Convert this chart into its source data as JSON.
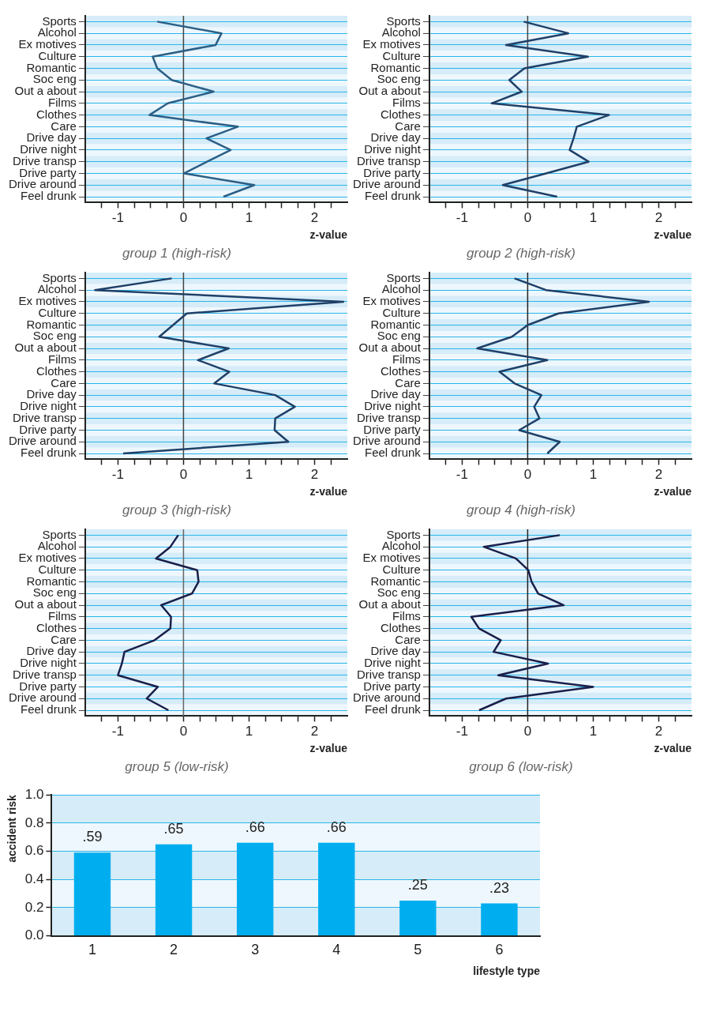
{
  "chart_data": [
    {
      "type": "line",
      "orientation": "horizontal",
      "title": "group 1 (high-risk)",
      "xlabel": "z-value",
      "categories": [
        "Sports",
        "Alcohol",
        "Ex motives",
        "Culture",
        "Romantic",
        "Soc eng",
        "Out a about",
        "Films",
        "Clothes",
        "Care",
        "Drive day",
        "Drive night",
        "Drive transp",
        "Drive party",
        "Drive around",
        "Feel drunk"
      ],
      "series": [
        {
          "color": "#2b5f86",
          "values": [
            -0.4,
            0.58,
            0.49,
            -0.47,
            -0.4,
            -0.18,
            0.46,
            -0.24,
            -0.52,
            0.83,
            0.35,
            0.72,
            0.36,
            0.01,
            1.08,
            0.61
          ]
        }
      ],
      "xlim": [
        -1.5,
        2.5
      ],
      "xticks": [
        {
          "value": -1.25,
          "label": null
        },
        -1,
        {
          "value": -0.75,
          "label": null
        },
        {
          "value": -0.5,
          "label": null
        },
        {
          "value": -0.25,
          "label": null
        },
        0,
        {
          "value": 0.25,
          "label": null
        },
        {
          "value": 0.5,
          "label": null
        },
        {
          "value": 0.75,
          "label": null
        },
        1,
        {
          "value": 1.25,
          "label": null
        },
        {
          "value": 1.5,
          "label": null
        },
        {
          "value": 1.75,
          "label": null
        },
        2,
        {
          "value": 2.25,
          "label": null
        }
      ],
      "ref_lines": [
        {
          "axis": "x",
          "value": 0,
          "color": "#444444"
        }
      ],
      "grid": "y",
      "marker": "none"
    },
    {
      "type": "line",
      "orientation": "horizontal",
      "title": "group 2 (high-risk)",
      "xlabel": "z-value",
      "categories": [
        "Sports",
        "Alcohol",
        "Ex motives",
        "Culture",
        "Romantic",
        "Soc eng",
        "Out a about",
        "Films",
        "Clothes",
        "Care",
        "Drive day",
        "Drive night",
        "Drive transp",
        "Drive party",
        "Drive around",
        "Feel drunk"
      ],
      "series": [
        {
          "color": "#1f4068",
          "values": [
            -0.06,
            0.62,
            -0.33,
            0.92,
            -0.05,
            -0.28,
            -0.09,
            -0.55,
            1.24,
            0.75,
            0.7,
            0.64,
            0.93,
            0.28,
            -0.38,
            0.45
          ]
        }
      ],
      "xlim": [
        -1.5,
        2.5
      ],
      "xticks": [
        {
          "value": -1.25,
          "label": null
        },
        -1,
        {
          "value": -0.75,
          "label": null
        },
        {
          "value": -0.5,
          "label": null
        },
        {
          "value": -0.25,
          "label": null
        },
        0,
        {
          "value": 0.25,
          "label": null
        },
        {
          "value": 0.5,
          "label": null
        },
        {
          "value": 0.75,
          "label": null
        },
        1,
        {
          "value": 1.25,
          "label": null
        },
        {
          "value": 1.5,
          "label": null
        },
        {
          "value": 1.75,
          "label": null
        },
        2,
        {
          "value": 2.25,
          "label": null
        }
      ],
      "ref_lines": [
        {
          "axis": "x",
          "value": 0,
          "color": "#444444"
        }
      ],
      "grid": "y",
      "marker": "none"
    },
    {
      "type": "line",
      "orientation": "horizontal",
      "title": "group 3 (high-risk)",
      "xlabel": "z-value",
      "categories": [
        "Sports",
        "Alcohol",
        "Ex motives",
        "Culture",
        "Romantic",
        "Soc eng",
        "Out a about",
        "Films",
        "Clothes",
        "Care",
        "Drive day",
        "Drive night",
        "Drive transp",
        "Drive party",
        "Drive around",
        "Feel drunk"
      ],
      "series": [
        {
          "color": "#1f4068",
          "values": [
            -0.18,
            -1.35,
            2.44,
            0.05,
            -0.16,
            -0.37,
            0.69,
            0.22,
            0.7,
            0.47,
            1.4,
            1.7,
            1.4,
            1.39,
            1.6,
            -0.92
          ]
        }
      ],
      "xlim": [
        -1.5,
        2.5
      ],
      "xticks": [
        {
          "value": -1.25,
          "label": null
        },
        -1,
        {
          "value": -0.75,
          "label": null
        },
        {
          "value": -0.5,
          "label": null
        },
        {
          "value": -0.25,
          "label": null
        },
        0,
        {
          "value": 0.25,
          "label": null
        },
        {
          "value": 0.5,
          "label": null
        },
        {
          "value": 0.75,
          "label": null
        },
        1,
        {
          "value": 1.25,
          "label": null
        },
        {
          "value": 1.5,
          "label": null
        },
        {
          "value": 1.75,
          "label": null
        },
        2,
        {
          "value": 2.25,
          "label": null
        }
      ],
      "ref_lines": [
        {
          "axis": "x",
          "value": 0,
          "color": "#444444"
        }
      ],
      "grid": "y",
      "marker": "none"
    },
    {
      "type": "line",
      "orientation": "horizontal",
      "title": "group 4 (high-risk)",
      "xlabel": "z-value",
      "categories": [
        "Sports",
        "Alcohol",
        "Ex motives",
        "Culture",
        "Romantic",
        "Soc eng",
        "Out a about",
        "Films",
        "Clothes",
        "Care",
        "Drive day",
        "Drive night",
        "Drive transp",
        "Drive party",
        "Drive around",
        "Feel drunk"
      ],
      "series": [
        {
          "color": "#1f4068",
          "values": [
            -0.2,
            0.28,
            1.85,
            0.47,
            0.0,
            -0.24,
            -0.77,
            0.3,
            -0.43,
            -0.2,
            0.21,
            0.1,
            0.18,
            -0.13,
            0.49,
            0.3
          ]
        }
      ],
      "xlim": [
        -1.5,
        2.5
      ],
      "xticks": [
        {
          "value": -1.25,
          "label": null
        },
        -1,
        {
          "value": -0.75,
          "label": null
        },
        {
          "value": -0.5,
          "label": null
        },
        {
          "value": -0.25,
          "label": null
        },
        0,
        {
          "value": 0.25,
          "label": null
        },
        {
          "value": 0.5,
          "label": null
        },
        {
          "value": 0.75,
          "label": null
        },
        1,
        {
          "value": 1.25,
          "label": null
        },
        {
          "value": 1.5,
          "label": null
        },
        {
          "value": 1.75,
          "label": null
        },
        2,
        {
          "value": 2.25,
          "label": null
        }
      ],
      "ref_lines": [
        {
          "axis": "x",
          "value": 0,
          "color": "#222222"
        }
      ],
      "grid": "y",
      "marker": "none"
    },
    {
      "type": "line",
      "orientation": "horizontal",
      "title": "group 5 (low-risk)",
      "xlabel": "z-value",
      "categories": [
        "Sports",
        "Alcohol",
        "Ex motives",
        "Culture",
        "Romantic",
        "Soc eng",
        "Out a about",
        "Films",
        "Clothes",
        "Care",
        "Drive day",
        "Drive night",
        "Drive transp",
        "Drive party",
        "Drive around",
        "Feel drunk"
      ],
      "series": [
        {
          "color": "#1a1f4a",
          "values": [
            -0.08,
            -0.2,
            -0.42,
            0.21,
            0.23,
            0.13,
            -0.34,
            -0.19,
            -0.2,
            -0.44,
            -0.9,
            -0.94,
            -1.0,
            -0.39,
            -0.56,
            -0.23
          ]
        }
      ],
      "xlim": [
        -1.5,
        2.5
      ],
      "xticks": [
        {
          "value": -1.25,
          "label": null
        },
        -1,
        {
          "value": -0.75,
          "label": null
        },
        {
          "value": -0.5,
          "label": null
        },
        {
          "value": -0.25,
          "label": null
        },
        0,
        {
          "value": 0.25,
          "label": null
        },
        {
          "value": 0.5,
          "label": null
        },
        {
          "value": 0.75,
          "label": null
        },
        1,
        {
          "value": 1.25,
          "label": null
        },
        {
          "value": 1.5,
          "label": null
        },
        {
          "value": 1.75,
          "label": null
        },
        2,
        {
          "value": 2.25,
          "label": null
        }
      ],
      "ref_lines": [
        {
          "axis": "x",
          "value": 0,
          "color": "#666666"
        }
      ],
      "grid": "y",
      "marker": "none"
    },
    {
      "type": "line",
      "orientation": "horizontal",
      "title": "group 6 (low-risk)",
      "xlabel": "z-value",
      "categories": [
        "Sports",
        "Alcohol",
        "Ex motives",
        "Culture",
        "Romantic",
        "Soc eng",
        "Out a about",
        "Films",
        "Clothes",
        "Care",
        "Drive day",
        "Drive night",
        "Drive transp",
        "Drive party",
        "Drive around",
        "Feel drunk"
      ],
      "series": [
        {
          "color": "#1a1f4a",
          "values": [
            0.49,
            -0.67,
            -0.18,
            0.01,
            0.06,
            0.16,
            0.55,
            -0.86,
            -0.74,
            -0.41,
            -0.52,
            0.31,
            -0.45,
            1.0,
            -0.33,
            -0.74
          ]
        }
      ],
      "xlim": [
        -1.5,
        2.5
      ],
      "xticks": [
        {
          "value": -1.25,
          "label": null
        },
        -1,
        {
          "value": -0.75,
          "label": null
        },
        {
          "value": -0.5,
          "label": null
        },
        {
          "value": -0.25,
          "label": null
        },
        0,
        {
          "value": 0.25,
          "label": null
        },
        {
          "value": 0.5,
          "label": null
        },
        {
          "value": 0.75,
          "label": null
        },
        1,
        {
          "value": 1.25,
          "label": null
        },
        {
          "value": 1.5,
          "label": null
        },
        {
          "value": 1.75,
          "label": null
        },
        2,
        {
          "value": 2.25,
          "label": null
        }
      ],
      "ref_lines": [
        {
          "axis": "x",
          "value": 0,
          "color": "#222222"
        }
      ],
      "grid": "y",
      "marker": "none"
    },
    {
      "type": "bar",
      "xlabel": "lifestyle type",
      "ylabel": "accident risk",
      "categories": [
        "1",
        "2",
        "3",
        "4",
        "5",
        "6"
      ],
      "values": [
        0.59,
        0.65,
        0.66,
        0.66,
        0.25,
        0.23
      ],
      "color": "#00aeef",
      "value_labels": [
        ".59",
        ".65",
        ".66",
        ".66",
        ".25",
        ".23"
      ],
      "ylim": [
        0,
        1
      ],
      "yticks": [
        {
          "value": 0,
          "label": "0.0"
        },
        0.2,
        0.4,
        0.6,
        0.8,
        {
          "value": 1,
          "label": "1.0"
        }
      ],
      "grid": "y"
    }
  ]
}
